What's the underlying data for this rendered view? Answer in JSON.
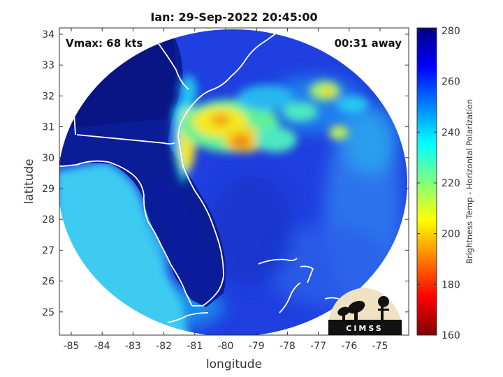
{
  "title": "Ian: 29-Sep-2022 20:45:00",
  "annotations": {
    "vmax": "Vmax: 68 kts",
    "time_away": "00:31 away"
  },
  "xaxis": {
    "label": "longitude",
    "ticks": [
      "-85",
      "-84",
      "-83",
      "-82",
      "-81",
      "-80",
      "-79",
      "-78",
      "-77",
      "-76",
      "-75"
    ]
  },
  "yaxis": {
    "label": "latitude",
    "ticks": [
      "34",
      "33",
      "32",
      "31",
      "30",
      "29",
      "28",
      "27",
      "26",
      "25"
    ]
  },
  "colorbar": {
    "label": "Brightness Temp - Horizontal Polarization",
    "ticks": [
      "280",
      "260",
      "240",
      "220",
      "200",
      "180",
      "160"
    ],
    "min": 160,
    "max": 280,
    "colormap": "jet"
  },
  "logo": {
    "text": "CIMSS"
  },
  "colors": {
    "land_cold": "#0a1a8c",
    "coast": "#ffffff",
    "warm_core": "#f5a418"
  }
}
